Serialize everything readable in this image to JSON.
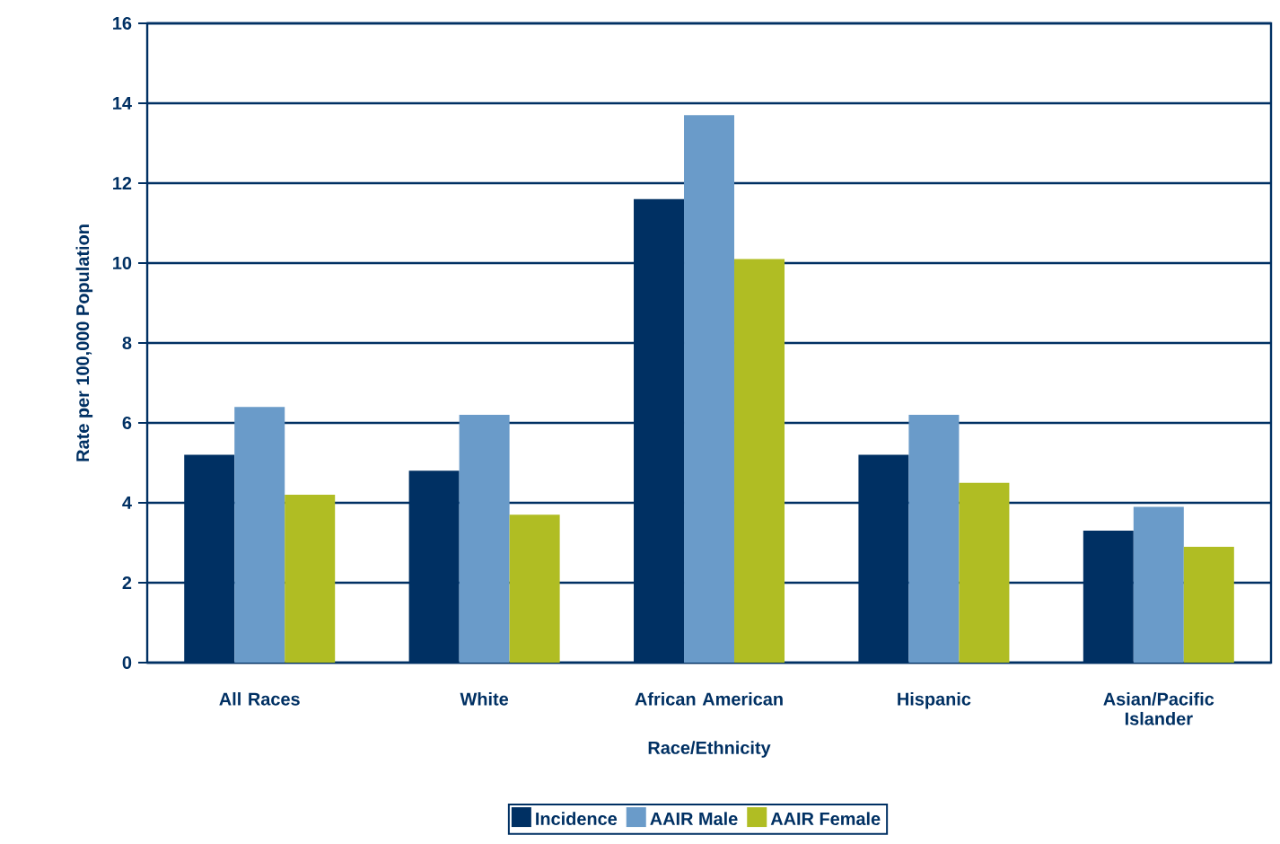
{
  "chart_data": {
    "type": "bar",
    "xlabel": "Race/Ethnicity",
    "ylabel": "Rate per 100,000 Population",
    "categories": [
      "All Races",
      "White",
      "African American",
      "Hispanic",
      "Asian/Pacific Islander"
    ],
    "series": [
      {
        "name": "Incidence",
        "color": "#003063",
        "values": [
          5.2,
          4.8,
          11.6,
          5.2,
          3.3
        ]
      },
      {
        "name": "AAIR Male",
        "color": "#6a9bc9",
        "values": [
          6.4,
          6.2,
          13.7,
          6.2,
          3.9
        ]
      },
      {
        "name": "AAIR Female",
        "color": "#b0bd23",
        "values": [
          4.2,
          3.7,
          10.1,
          4.5,
          2.9
        ]
      }
    ],
    "ylim": [
      0,
      16
    ],
    "yticks": [
      0,
      2,
      4,
      6,
      8,
      10,
      12,
      14,
      16
    ],
    "grid": "y",
    "legend": "bottom"
  }
}
